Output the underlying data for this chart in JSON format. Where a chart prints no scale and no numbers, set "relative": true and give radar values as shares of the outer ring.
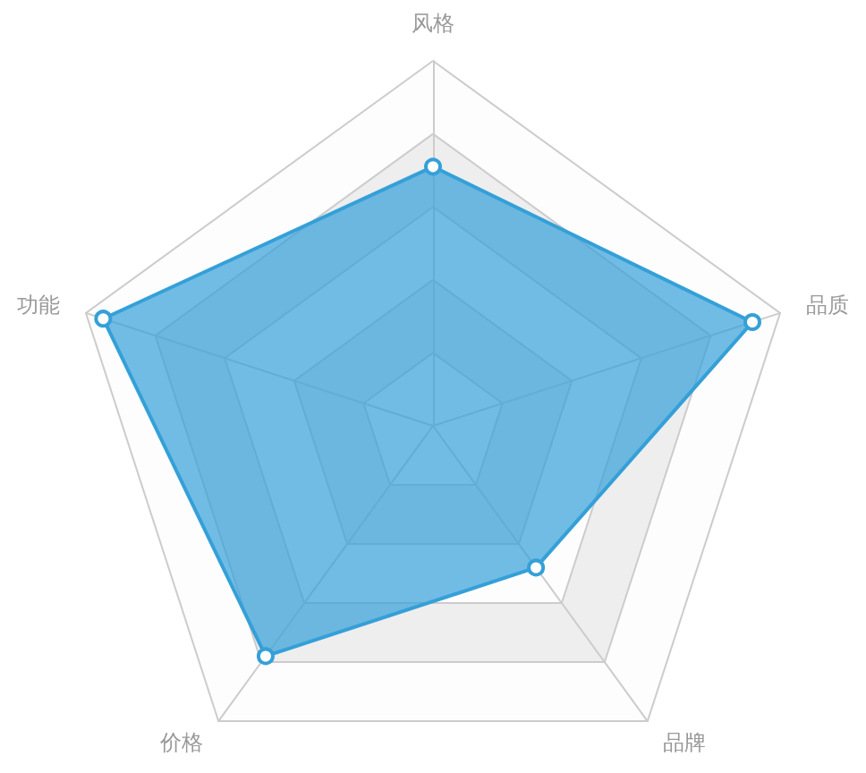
{
  "chart_data": {
    "type": "radar",
    "categories": [
      "风格",
      "品质",
      "品牌",
      "价格",
      "功能"
    ],
    "relative": true,
    "grid": true,
    "marker": "circle",
    "series": [
      {
        "color": "#35a0d8",
        "values": [
          0.71,
          0.92,
          0.48,
          0.78,
          0.95
        ]
      }
    ]
  }
}
